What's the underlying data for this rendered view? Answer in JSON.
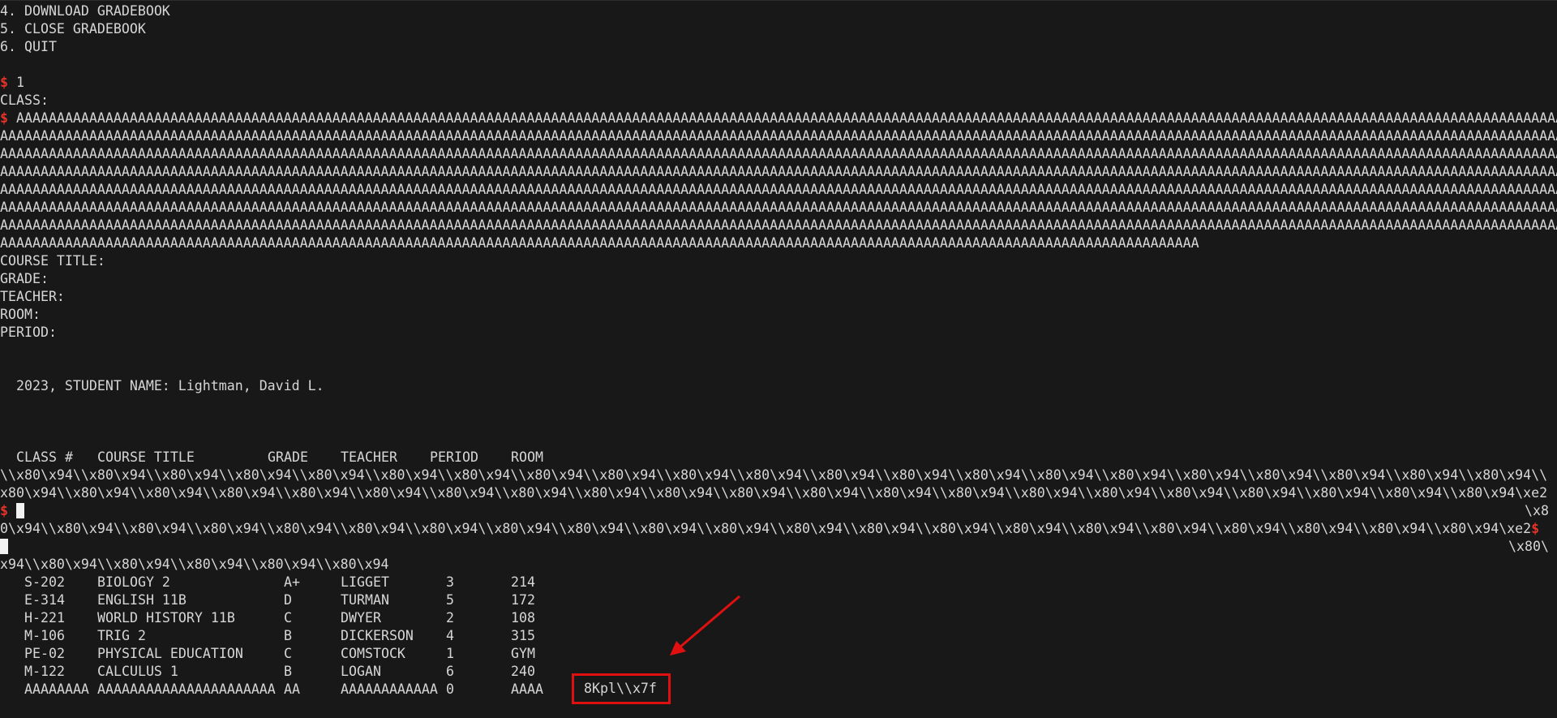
{
  "menu": {
    "item4": "4. DOWNLOAD GRADEBOOK",
    "item5": "5. CLOSE GRADEBOOK",
    "item6": "6. QUIT"
  },
  "prompt": "$",
  "choice": "1",
  "class_label": "CLASS:",
  "a_input": [
    "AAAAAAAAAAAAAAAAAAAAAAAAAAAAAAAAAAAAAAAAAAAAAAAAAAAAAAAAAAAAAAAAAAAAAAAAAAAAAAAAAAAAAAAAAAAAAAAAAAAAAAAAAAAAAAAAAAAAAAAAAAAAAAAAAAAAAAAAAAAAAAAAAAAAAAAAAAAAAAAAAAAAAAAAAAAAAAAAAAAAAAAAAAAAAAA",
    "AAAAAAAAAAAAAAAAAAAAAAAAAAAAAAAAAAAAAAAAAAAAAAAAAAAAAAAAAAAAAAAAAAAAAAAAAAAAAAAAAAAAAAAAAAAAAAAAAAAAAAAAAAAAAAAAAAAAAAAAAAAAAAAAAAAAAAAAAAAAAAAAAAAAAAAAAAAAAAAAAAAAAAAAAAAAAAAAAAAAAAAAAAAAAAAAAA",
    "AAAAAAAAAAAAAAAAAAAAAAAAAAAAAAAAAAAAAAAAAAAAAAAAAAAAAAAAAAAAAAAAAAAAAAAAAAAAAAAAAAAAAAAAAAAAAAAAAAAAAAAAAAAAAAAAAAAAAAAAAAAAAAAAAAAAAAAAAAAAAAAAAAAAAAAAAAAAAAAAAAAAAAAAAAAAAAAAAAAAAAAAAAAAAAAAAA",
    "AAAAAAAAAAAAAAAAAAAAAAAAAAAAAAAAAAAAAAAAAAAAAAAAAAAAAAAAAAAAAAAAAAAAAAAAAAAAAAAAAAAAAAAAAAAAAAAAAAAAAAAAAAAAAAAAAAAAAAAAAAAAAAAAAAAAAAAAAAAAAAAAAAAAAAAAAAAAAAAAAAAAAAAAAAAAAAAAAAAAAAAAAAAAAAAAAA",
    "AAAAAAAAAAAAAAAAAAAAAAAAAAAAAAAAAAAAAAAAAAAAAAAAAAAAAAAAAAAAAAAAAAAAAAAAAAAAAAAAAAAAAAAAAAAAAAAAAAAAAAAAAAAAAAAAAAAAAAAAAAAAAAAAAAAAAAAAAAAAAAAAAAAAAAAAAAAAAAAAAAAAAAAAAAAAAAAAAAAAAAAAAAAAAAAAAA",
    "AAAAAAAAAAAAAAAAAAAAAAAAAAAAAAAAAAAAAAAAAAAAAAAAAAAAAAAAAAAAAAAAAAAAAAAAAAAAAAAAAAAAAAAAAAAAAAAAAAAAAAAAAAAAAAAAAAAAAAAAAAAAAAAAAAAAAAAAAAAAAAAAAAAAAAAAAAAAAAAAAAAAAAAAAAAAAAAAAAAAAAAAAAAAAAAAAA",
    "AAAAAAAAAAAAAAAAAAAAAAAAAAAAAAAAAAAAAAAAAAAAAAAAAAAAAAAAAAAAAAAAAAAAAAAAAAAAAAAAAAAAAAAAAAAAAAAAAAAAAAAAAAAAAAAAAAAAAAAAAAAAAAAAAAAAAAAAAAAAAAAAAAAAAAAAAAAAAAAAAAAAAAAAAAAAAAAAAAAAAAAAAAAAAAAAAA",
    "AAAAAAAAAAAAAAAAAAAAAAAAAAAAAAAAAAAAAAAAAAAAAAAAAAAAAAAAAAAAAAAAAAAAAAAAAAAAAAAAAAAAAAAAAAAAAAAAAAAAAAAAAAAAAAAAAAAAAAAAAAAAAAAAAAAAAAAAAAAAAAAAAAAA"
  ],
  "fields": {
    "course_title": "COURSE TITLE:",
    "grade": "GRADE:",
    "teacher": "TEACHER:",
    "room": "ROOM:",
    "period": "PERIOD:"
  },
  "student_line": "  2023, STUDENT NAME: Lightman, David L.",
  "table": {
    "headers": [
      "CLASS #",
      "COURSE TITLE",
      "GRADE",
      "TEACHER",
      "PERIOD",
      "ROOM"
    ],
    "rows": [
      [
        "S-202",
        "BIOLOGY 2",
        "A+",
        "LIGGET",
        "3",
        "214"
      ],
      [
        "E-314",
        "ENGLISH 11B",
        "D",
        "TURMAN",
        "5",
        "172"
      ],
      [
        "H-221",
        "WORLD HISTORY 11B",
        "C",
        "DWYER",
        "2",
        "108"
      ],
      [
        "M-106",
        "TRIG 2",
        "B",
        "DICKERSON",
        "4",
        "315"
      ],
      [
        "PE-02",
        "PHYSICAL EDUCATION",
        "C",
        "COMSTOCK",
        "1",
        "GYM"
      ],
      [
        "M-122",
        "CALCULUS 1",
        "B",
        "LOGAN",
        "6",
        "240"
      ],
      [
        "AAAAAAAA",
        "AAAAAAAAAAAAAAAAAAAAAA",
        "AA",
        "AAAAAAAAAAAA",
        "0",
        "AAAA"
      ]
    ],
    "leak": "8Kpl\\\\x7f"
  },
  "garbage": {
    "line1": "\\\\x80\\x94\\\\x80\\x94\\\\x80\\x94\\\\x80\\x94\\\\x80\\x94\\\\x80\\x94\\\\x80\\x94\\\\x80\\x94\\\\x80\\x94\\\\x80\\x94\\\\x80\\x94\\\\x80\\x94\\\\x80\\x94\\\\x80\\x94\\\\x80\\x94\\\\x80\\x94\\\\x80\\x94\\\\x80\\x94\\\\x80\\x94\\\\x80\\x94\\\\x80\\x94\\\\",
    "line2": "x80\\x94\\\\x80\\x94\\\\x80\\x94\\\\x80\\x94\\\\x80\\x94\\\\x80\\x94\\\\x80\\x94\\\\x80\\x94\\\\x80\\x94\\\\x80\\x94\\\\x80\\x94\\\\x80\\x94\\\\x80\\x94\\\\x80\\x94\\\\x80\\x94\\\\x80\\x94\\\\x80\\x94\\\\x80\\x94\\\\x80\\x94\\\\x80\\x94\\\\x80\\x94\\xe2",
    "line3_right": "\\x8",
    "line4": "0\\x94\\\\x80\\x94\\\\x80\\x94\\\\x80\\x94\\\\x80\\x94\\\\x80\\x94\\\\x80\\x94\\\\x80\\x94\\\\x80\\x94\\\\x80\\x94\\\\x80\\x94\\\\x80\\x94\\\\x80\\x94\\\\x80\\x94\\\\x80\\x94\\\\x80\\x94\\\\x80\\x94\\\\x80\\x94\\\\x80\\x94\\\\x80\\x94\\\\x80\\x94\\xe2",
    "line5_right": "\\x80\\",
    "line6": "x94\\\\x80\\x94\\\\x80\\x94\\\\x80\\x94\\\\x80\\x94\\\\x80\\x94"
  },
  "colors": {
    "background": "#181818",
    "text": "#d6d6d6",
    "prompt": "#e5332a",
    "annotation": "#e01010"
  }
}
